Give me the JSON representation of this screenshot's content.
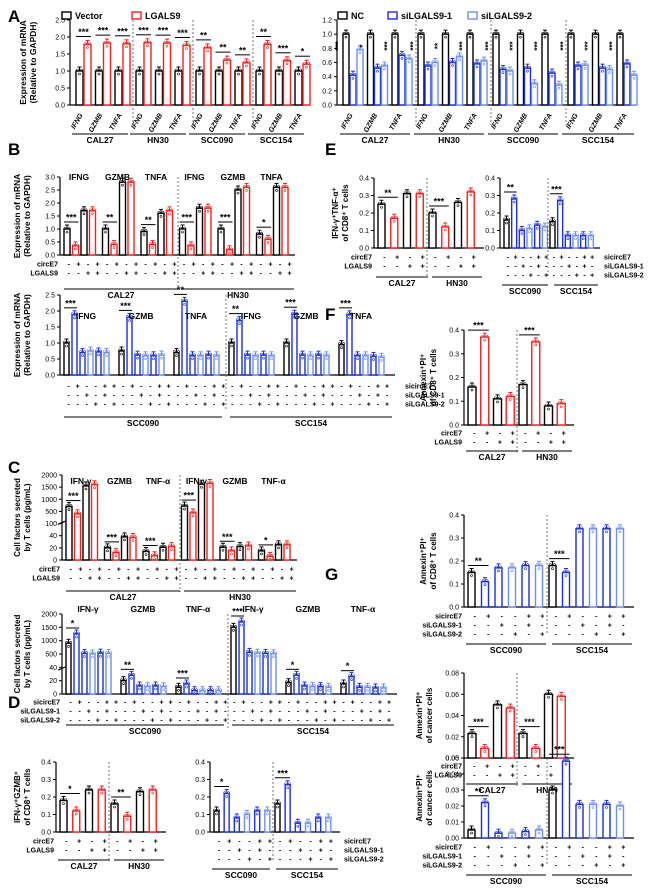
{
  "figure": {
    "panel_letters": [
      "A",
      "B",
      "C",
      "D",
      "E",
      "F",
      "G"
    ],
    "colors": {
      "control": "#000000",
      "up": "#ee2222",
      "down1": "#1d2fd6",
      "down2": "#6f8ff0"
    }
  },
  "chart_data": [
    {
      "id": "A1",
      "panel": "A",
      "type": "bar",
      "ylabel": "Expression  of mRNA (Relative to GAPDH)",
      "ylim": [
        0,
        2.5
      ],
      "yticks": [
        "0.0",
        "0.5",
        "1.0",
        "1.5",
        "2.0",
        "2.5"
      ],
      "legend": [
        "Vector",
        "LGALS9"
      ],
      "groups": [
        "CAL27",
        "HN30",
        "SCC090",
        "SCC154"
      ],
      "genes": [
        "IFNG",
        "GZMB",
        "TNFA"
      ],
      "series": [
        {
          "name": "Vector",
          "values": [
            1,
            1,
            1,
            1,
            1,
            1,
            1,
            1,
            1,
            1,
            1,
            1
          ]
        },
        {
          "name": "LGALS9",
          "values": [
            1.78,
            1.82,
            1.8,
            1.83,
            1.82,
            1.75,
            1.68,
            1.32,
            1.24,
            1.78,
            1.3,
            1.2
          ]
        }
      ],
      "sig": [
        "***",
        "***",
        "***",
        "***",
        "***",
        "***",
        "**",
        "**",
        "**",
        "**",
        "***",
        "*"
      ]
    },
    {
      "id": "A2",
      "panel": "A",
      "type": "bar",
      "ylim": [
        0,
        1.2
      ],
      "yticks": [
        "0.0",
        "0.2",
        "0.4",
        "0.6",
        "0.8",
        "1.0",
        "1.2"
      ],
      "legend": [
        "NC",
        "siLGALS9-1",
        "siLGALS9-2"
      ],
      "groups": [
        "CAL27",
        "HN30",
        "SCC090",
        "SCC154"
      ],
      "genes": [
        "IFNG",
        "GZMB",
        "TNFA"
      ],
      "series": [
        {
          "name": "NC",
          "values": [
            1,
            1,
            1,
            1,
            1,
            1,
            1,
            1,
            1,
            1,
            1,
            1
          ]
        },
        {
          "name": "siLGALS9-1",
          "values": [
            0.42,
            0.52,
            0.7,
            0.55,
            0.6,
            0.58,
            0.5,
            0.52,
            0.45,
            0.55,
            0.52,
            0.58
          ]
        },
        {
          "name": "siLGALS9-2",
          "values": [
            0.78,
            0.55,
            0.65,
            0.6,
            0.68,
            0.62,
            0.48,
            0.3,
            0.28,
            0.56,
            0.5,
            0.42
          ]
        }
      ],
      "sig": [
        "***",
        "*",
        "***",
        "***",
        "**",
        "***",
        "***",
        "***",
        "***",
        "***",
        "***",
        "***"
      ]
    },
    {
      "id": "B1",
      "panel": "B",
      "type": "bar",
      "ylabel": "Expression  of mRNA (Relative to GAPDH)",
      "ylim": [
        0,
        3.0
      ],
      "yticks": [
        "0.0",
        "0.5",
        "1.0",
        "1.5",
        "2.0",
        "2.5",
        "3.0"
      ],
      "groups": [
        "CAL27",
        "HN30"
      ],
      "genes": [
        "IFNG",
        "GZMB",
        "TNFA"
      ],
      "row_labels": [
        "circE7",
        "LGALS9"
      ],
      "pattern": [
        [
          "-",
          "+",
          "-",
          "+"
        ],
        [
          "-",
          "-",
          "+",
          "+"
        ]
      ],
      "values": [
        [
          1.0,
          0.35,
          1.7,
          1.7
        ],
        [
          1.0,
          0.4,
          2.8,
          2.8
        ],
        [
          0.9,
          0.4,
          1.6,
          1.7
        ],
        [
          1.0,
          0.35,
          1.8,
          1.8
        ],
        [
          1.0,
          0.2,
          2.5,
          2.6
        ],
        [
          0.8,
          0.6,
          2.6,
          2.6
        ]
      ],
      "sig": [
        "***",
        "**",
        "**",
        "***",
        "***",
        "*"
      ]
    },
    {
      "id": "B2",
      "panel": "B",
      "type": "bar",
      "ylabel": "Expression  of mRNA (Relative to GAPDH)",
      "ylim": [
        0,
        2.5
      ],
      "yticks": [
        "0.0",
        "0.5",
        "1.0",
        "1.5",
        "2.0",
        "2.5"
      ],
      "groups": [
        "SCC090",
        "SCC154"
      ],
      "genes": [
        "IFNG",
        "GZMB",
        "TNFA"
      ],
      "row_labels": [
        "sicircE7",
        "siLGALS9-1",
        "siLGALS9-2"
      ],
      "pattern": [
        [
          "-",
          "+",
          "-",
          "-",
          "+",
          "+"
        ],
        [
          "-",
          "-",
          "+",
          "-",
          "+",
          "-"
        ],
        [
          "-",
          "-",
          "-",
          "+",
          "-",
          "+"
        ]
      ],
      "values": [
        [
          1.0,
          1.88,
          0.7,
          0.75,
          0.72,
          0.7
        ],
        [
          0.75,
          1.8,
          0.62,
          0.6,
          0.6,
          0.62
        ],
        [
          0.7,
          2.3,
          0.6,
          0.6,
          0.62,
          0.6
        ],
        [
          1.0,
          1.7,
          0.62,
          0.6,
          0.62,
          0.6
        ],
        [
          1.0,
          1.9,
          0.62,
          0.6,
          0.62,
          0.6
        ],
        [
          0.95,
          1.88,
          0.6,
          0.6,
          0.58,
          0.55
        ]
      ],
      "sig": [
        "***",
        "***",
        "**",
        "**",
        "***",
        "***"
      ]
    },
    {
      "id": "C1",
      "panel": "C",
      "type": "bar",
      "ylabel": "Cell factors secreted by T cells (pg/mL)",
      "yticks": [
        "0",
        "20",
        "40",
        "100",
        "500",
        "1000",
        "1500",
        "2000"
      ],
      "groups": [
        "CAL27",
        "HN30"
      ],
      "genes": [
        "IFN-γ",
        "GZMB",
        "TNF-α"
      ],
      "row_labels": [
        "circE7",
        "LGALS9"
      ],
      "pattern": [
        [
          "-",
          "+",
          "-",
          "+"
        ],
        [
          "-",
          "-",
          "+",
          "+"
        ]
      ],
      "values": [
        [
          700,
          420,
          1550,
          1600
        ],
        [
          20,
          12,
          38,
          37
        ],
        [
          14,
          7,
          21,
          22
        ],
        [
          720,
          450,
          1620,
          1650
        ],
        [
          21,
          15,
          22,
          23
        ],
        [
          15,
          6,
          25,
          25
        ]
      ],
      "sig": [
        "***",
        "***",
        "***",
        "***",
        "***",
        "*"
      ]
    },
    {
      "id": "C2",
      "panel": "C",
      "type": "bar",
      "ylabel": "Cell factors secreted by T cells (pg/mL)",
      "yticks": [
        "0",
        "20",
        "40",
        "500",
        "1000",
        "1500",
        "2000"
      ],
      "groups": [
        "SCC090",
        "SCC154"
      ],
      "genes": [
        "IFN-γ",
        "GZMB",
        "TNF-α"
      ],
      "row_labels": [
        "sicircE7",
        "siLGALS9-1",
        "siLGALS9-2"
      ],
      "pattern": [
        [
          "-",
          "+",
          "-",
          "-",
          "+",
          "+"
        ],
        [
          "-",
          "-",
          "+",
          "-",
          "+",
          "-"
        ],
        [
          "-",
          "-",
          "-",
          "+",
          "-",
          "+"
        ]
      ],
      "values": [
        [
          900,
          1250,
          520,
          500,
          530,
          520
        ],
        [
          20,
          28,
          12,
          11,
          12,
          11
        ],
        [
          10,
          15,
          5,
          5,
          5,
          5
        ],
        [
          1500,
          1700,
          560,
          530,
          520,
          510
        ],
        [
          17,
          28,
          12,
          11,
          11,
          10
        ],
        [
          15,
          26,
          10,
          10,
          9,
          9
        ]
      ],
      "sig": [
        "*",
        "**",
        "***",
        "***",
        "*",
        "*"
      ]
    },
    {
      "id": "D1",
      "panel": "D",
      "type": "bar",
      "ylabel": "IFN-γ+GZMB+ of CD8+ T cells",
      "ylim": [
        0,
        0.4
      ],
      "yticks": [
        "0.0",
        "0.1",
        "0.2",
        "0.3",
        "0.4"
      ],
      "groups": [
        "CAL27",
        "HN30"
      ],
      "row_labels": [
        "circE7",
        "LGALS9"
      ],
      "pattern": [
        [
          "-",
          "+",
          "-",
          "+"
        ],
        [
          "-",
          "-",
          "+",
          "+"
        ]
      ],
      "values": [
        [
          0.18,
          0.12,
          0.24,
          0.24
        ],
        [
          0.16,
          0.09,
          0.23,
          0.24
        ]
      ],
      "sig": [
        "*",
        "**"
      ]
    },
    {
      "id": "D2",
      "panel": "D",
      "type": "bar",
      "ylim": [
        0,
        0.4
      ],
      "yticks": [
        "0.0",
        "0.1",
        "0.2",
        "0.3",
        "0.4"
      ],
      "groups": [
        "SCC090",
        "SCC154"
      ],
      "row_labels": [
        "sicircE7",
        "siLGALS9-1",
        "siLGALS9-2"
      ],
      "pattern": [
        [
          "-",
          "+",
          "-",
          "-",
          "+",
          "+"
        ],
        [
          "-",
          "-",
          "+",
          "-",
          "+",
          "-"
        ],
        [
          "-",
          "-",
          "-",
          "+",
          "-",
          "+"
        ]
      ],
      "values": [
        [
          0.12,
          0.22,
          0.08,
          0.1,
          0.12,
          0.12
        ],
        [
          0.16,
          0.27,
          0.05,
          0.05,
          0.08,
          0.08
        ]
      ],
      "sig": [
        "*",
        "***"
      ]
    },
    {
      "id": "E1",
      "panel": "E",
      "type": "bar",
      "ylabel": "IFN-γ+TNF-α+ of CD8+ T cells",
      "ylim": [
        0,
        0.4
      ],
      "yticks": [
        "0.0",
        "0.1",
        "0.2",
        "0.3",
        "0.4"
      ],
      "groups": [
        "CAL27",
        "HN30"
      ],
      "row_labels": [
        "circE7",
        "LGALS9"
      ],
      "pattern": [
        [
          "-",
          "+",
          "-",
          "+"
        ],
        [
          "-",
          "-",
          "+",
          "+"
        ]
      ],
      "values": [
        [
          0.25,
          0.17,
          0.31,
          0.31
        ],
        [
          0.2,
          0.12,
          0.26,
          0.32
        ]
      ],
      "sig": [
        "**",
        "***"
      ]
    },
    {
      "id": "E2",
      "panel": "E",
      "type": "bar",
      "ylim": [
        0,
        0.4
      ],
      "yticks": [
        "0.0",
        "0.1",
        "0.2",
        "0.3",
        "0.4"
      ],
      "groups": [
        "SCC090",
        "SCC154"
      ],
      "row_labels": [
        "sicircE7",
        "siLGALS9-1",
        "siLGALS9-2"
      ],
      "pattern": [
        [
          "-",
          "+",
          "-",
          "-",
          "+",
          "+"
        ],
        [
          "-",
          "-",
          "+",
          "-",
          "+",
          "-"
        ],
        [
          "-",
          "-",
          "-",
          "+",
          "-",
          "+"
        ]
      ],
      "values": [
        [
          0.16,
          0.28,
          0.1,
          0.11,
          0.13,
          0.12
        ],
        [
          0.15,
          0.27,
          0.07,
          0.07,
          0.07,
          0.07
        ]
      ],
      "sig": [
        "**",
        "***"
      ]
    },
    {
      "id": "F1",
      "panel": "F",
      "type": "bar",
      "ylabel": "Annexin+PI+ of CD8+ T cells",
      "ylim": [
        0,
        0.4
      ],
      "yticks": [
        "0.0",
        "0.1",
        "0.2",
        "0.3",
        "0.4"
      ],
      "groups": [
        "CAL27",
        "HN30"
      ],
      "row_labels": [
        "circE7",
        "LGALS9"
      ],
      "pattern": [
        [
          "-",
          "+",
          "-",
          "+"
        ],
        [
          "-",
          "-",
          "+",
          "+"
        ]
      ],
      "values": [
        [
          0.16,
          0.37,
          0.11,
          0.12
        ],
        [
          0.17,
          0.35,
          0.08,
          0.09
        ]
      ],
      "sig": [
        "***",
        "***"
      ]
    },
    {
      "id": "F2",
      "panel": "F",
      "type": "bar",
      "ylabel": "Annexin+PI+ of CD8+ T cells",
      "ylim": [
        0,
        0.4
      ],
      "yticks": [
        "0.0",
        "0.1",
        "0.2",
        "0.3",
        "0.4"
      ],
      "groups": [
        "SCC090",
        "SCC154"
      ],
      "row_labels": [
        "sicircE7",
        "siLGALS9-1",
        "siLGALS9-2"
      ],
      "pattern": [
        [
          "-",
          "+",
          "-",
          "-",
          "+",
          "+"
        ],
        [
          "-",
          "-",
          "+",
          "-",
          "+",
          "-"
        ],
        [
          "-",
          "-",
          "-",
          "+",
          "-",
          "+"
        ]
      ],
      "values": [
        [
          0.15,
          0.11,
          0.17,
          0.17,
          0.18,
          0.18
        ],
        [
          0.18,
          0.15,
          0.34,
          0.34,
          0.34,
          0.34
        ]
      ],
      "sig": [
        "**",
        "***"
      ]
    },
    {
      "id": "G1",
      "panel": "G",
      "type": "bar",
      "ylabel": "Annexin+PI+ of cancer cells",
      "ylim": [
        0,
        0.08
      ],
      "yticks": [
        "0.00",
        "0.02",
        "0.04",
        "0.06",
        "0.08"
      ],
      "groups": [
        "CAL27",
        "HN30"
      ],
      "row_labels": [
        "circE7",
        "LGALS9"
      ],
      "pattern": [
        [
          "-",
          "+",
          "-",
          "+"
        ],
        [
          "-",
          "-",
          "+",
          "+"
        ]
      ],
      "values": [
        [
          0.023,
          0.009,
          0.05,
          0.047
        ],
        [
          0.023,
          0.009,
          0.06,
          0.058
        ]
      ],
      "sig": [
        "***",
        "***"
      ]
    },
    {
      "id": "G2",
      "panel": "G",
      "type": "bar",
      "ylabel": "Annexin+PI+ of cancer cells",
      "ylim": [
        0,
        0.05
      ],
      "yticks": [
        "0.00",
        "0.01",
        "0.02",
        "0.03",
        "0.04",
        "0.05"
      ],
      "groups": [
        "SCC090",
        "SCC154"
      ],
      "row_labels": [
        "sicircE7",
        "siLGALS9-1",
        "siLGALS9-2"
      ],
      "pattern": [
        [
          "-",
          "+",
          "-",
          "-",
          "+",
          "+"
        ],
        [
          "-",
          "-",
          "+",
          "-",
          "+",
          "-"
        ],
        [
          "-",
          "-",
          "-",
          "+",
          "-",
          "+"
        ]
      ],
      "values": [
        [
          0.005,
          0.022,
          0.003,
          0.003,
          0.004,
          0.005
        ],
        [
          0.03,
          0.048,
          0.021,
          0.021,
          0.021,
          0.02
        ]
      ],
      "sig": [
        "**",
        "***"
      ]
    }
  ]
}
